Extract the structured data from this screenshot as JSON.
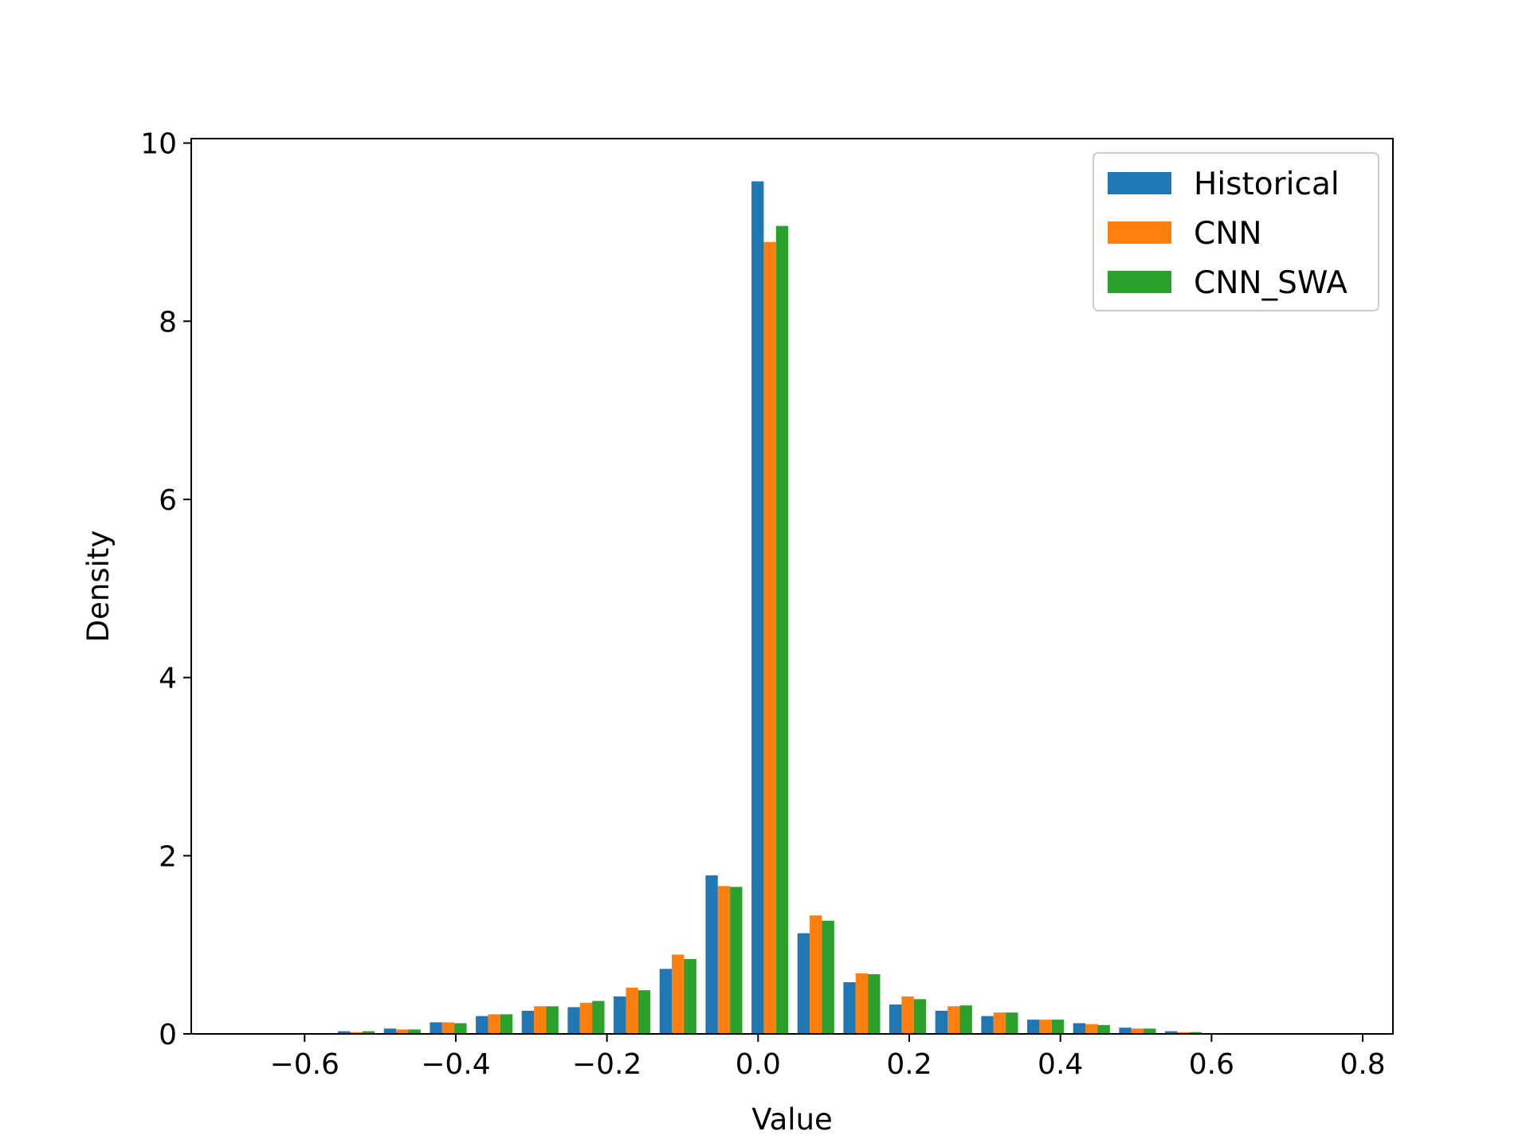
{
  "chart_data": {
    "type": "bar",
    "title": "",
    "xlabel": "Value",
    "ylabel": "Density",
    "xlim": [
      -0.75,
      0.84
    ],
    "ylim": [
      0,
      10.05
    ],
    "xticks": [
      -0.6,
      -0.4,
      -0.2,
      0.0,
      0.2,
      0.4,
      0.6,
      0.8
    ],
    "xtick_labels": [
      "−0.6",
      "−0.4",
      "−0.2",
      "0.0",
      "0.2",
      "0.4",
      "0.6",
      "0.8"
    ],
    "yticks": [
      0,
      2,
      4,
      6,
      8,
      10
    ],
    "ytick_labels": [
      "0",
      "2",
      "4",
      "6",
      "8",
      "10"
    ],
    "grid": false,
    "legend_position": "top-right",
    "bin_centers": [
      -0.5316,
      -0.4708,
      -0.41,
      -0.3492,
      -0.2884,
      -0.2276,
      -0.1668,
      -0.106,
      -0.0452,
      0.0156,
      0.0764,
      0.1372,
      0.198,
      0.2588,
      0.3196,
      0.3804,
      0.4412,
      0.502,
      0.5628
    ],
    "series": [
      {
        "name": "Historical",
        "color": "#1f77b4",
        "values": [
          0.03,
          0.06,
          0.13,
          0.2,
          0.26,
          0.3,
          0.42,
          0.73,
          1.78,
          9.57,
          1.13,
          0.58,
          0.33,
          0.26,
          0.2,
          0.16,
          0.12,
          0.07,
          0.03
        ]
      },
      {
        "name": "CNN",
        "color": "#ff7f0e",
        "values": [
          0.02,
          0.05,
          0.13,
          0.22,
          0.31,
          0.35,
          0.52,
          0.89,
          1.66,
          8.89,
          1.33,
          0.68,
          0.42,
          0.31,
          0.24,
          0.16,
          0.11,
          0.06,
          0.02
        ]
      },
      {
        "name": "CNN_SWA",
        "color": "#2ca02c",
        "values": [
          0.03,
          0.05,
          0.12,
          0.22,
          0.31,
          0.37,
          0.49,
          0.84,
          1.65,
          9.07,
          1.27,
          0.67,
          0.39,
          0.32,
          0.24,
          0.16,
          0.1,
          0.06,
          0.02
        ]
      }
    ]
  }
}
